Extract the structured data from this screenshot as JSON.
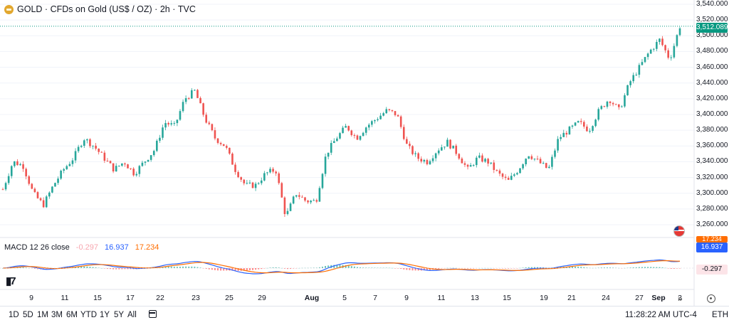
{
  "legend": {
    "symbol": "GOLD",
    "separator1": "·",
    "name": "CFDs on Gold (US$ / OZ)",
    "separator2": "·",
    "interval": "2h",
    "separator3": "·",
    "source": "TVC"
  },
  "macd": {
    "label": "MACD 12 26 close",
    "hist_value": "-0.297",
    "macd_value": "16.937",
    "signal_value": "17.234",
    "axis_tag_signal": "17.234",
    "axis_tag_macd": "16.937",
    "axis_tag_hist": "-0.297"
  },
  "price_axis": {
    "labels": [
      "3,540.000",
      "3,520.000",
      "3,500.000",
      "3,480.000",
      "3,460.000",
      "3,440.000",
      "3,420.000",
      "3,400.000",
      "3,380.000",
      "3,360.000",
      "3,340.000",
      "3,320.000",
      "3,300.000",
      "3,280.000",
      "3,260.000"
    ],
    "last_price": "3,512.089"
  },
  "time_axis": {
    "labels": [
      "9",
      "11",
      "15",
      "17",
      "22",
      "23",
      "25",
      "29",
      "Aug",
      "5",
      "7",
      "9",
      "11",
      "13",
      "15",
      "19",
      "21",
      "24",
      "27",
      "Sep",
      "3"
    ]
  },
  "toolbar": {
    "ranges": [
      "1D",
      "5D",
      "1M",
      "3M",
      "6M",
      "YTD",
      "1Y",
      "5Y",
      "All"
    ],
    "clock": "11:28:22 AM UTC-4",
    "session": "ETH"
  },
  "colors": {
    "up": "#26a69a",
    "down": "#ef5350",
    "macd_line": "#2962ff",
    "signal_line": "#ff6d00",
    "last_price": "#089981",
    "hist_up": "#26a69a",
    "hist_down": "#ff5252"
  },
  "icons": [
    "gold-logo-icon",
    "us-flag-icon",
    "tradingview-logo-icon",
    "calendar-icon",
    "settings-gear-icon",
    "scroll-right-icon"
  ],
  "chart_data": {
    "type": "candlestick",
    "symbol": "GOLD",
    "interval": "2h",
    "ylim": [
      3260,
      3540
    ],
    "x_labels": [
      "9",
      "11",
      "15",
      "17",
      "22",
      "23",
      "25",
      "29",
      "Aug",
      "5",
      "7",
      "9",
      "11",
      "13",
      "15",
      "19",
      "21",
      "24",
      "27",
      "Sep",
      "3"
    ],
    "close_trace": [
      [
        0,
        3305
      ],
      [
        2,
        3340
      ],
      [
        4,
        3335
      ],
      [
        6,
        3300
      ],
      [
        8,
        3285
      ],
      [
        10,
        3310
      ],
      [
        12,
        3330
      ],
      [
        14,
        3345
      ],
      [
        16,
        3370
      ],
      [
        18,
        3360
      ],
      [
        20,
        3345
      ],
      [
        22,
        3330
      ],
      [
        24,
        3340
      ],
      [
        26,
        3325
      ],
      [
        28,
        3340
      ],
      [
        30,
        3355
      ],
      [
        32,
        3390
      ],
      [
        34,
        3385
      ],
      [
        36,
        3420
      ],
      [
        38,
        3430
      ],
      [
        40,
        3395
      ],
      [
        42,
        3370
      ],
      [
        44,
        3360
      ],
      [
        46,
        3330
      ],
      [
        48,
        3310
      ],
      [
        50,
        3310
      ],
      [
        52,
        3325
      ],
      [
        54,
        3330
      ],
      [
        56,
        3270
      ],
      [
        58,
        3300
      ],
      [
        60,
        3290
      ],
      [
        62,
        3290
      ],
      [
        64,
        3350
      ],
      [
        66,
        3370
      ],
      [
        68,
        3385
      ],
      [
        70,
        3370
      ],
      [
        72,
        3385
      ],
      [
        74,
        3395
      ],
      [
        76,
        3405
      ],
      [
        78,
        3400
      ],
      [
        80,
        3360
      ],
      [
        82,
        3345
      ],
      [
        84,
        3340
      ],
      [
        86,
        3355
      ],
      [
        88,
        3365
      ],
      [
        90,
        3350
      ],
      [
        92,
        3330
      ],
      [
        94,
        3345
      ],
      [
        96,
        3340
      ],
      [
        98,
        3325
      ],
      [
        100,
        3315
      ],
      [
        102,
        3330
      ],
      [
        104,
        3350
      ],
      [
        106,
        3340
      ],
      [
        108,
        3330
      ],
      [
        110,
        3370
      ],
      [
        112,
        3380
      ],
      [
        114,
        3390
      ],
      [
        116,
        3380
      ],
      [
        118,
        3405
      ],
      [
        120,
        3420
      ],
      [
        122,
        3405
      ],
      [
        124,
        3440
      ],
      [
        126,
        3460
      ],
      [
        128,
        3480
      ],
      [
        130,
        3495
      ],
      [
        132,
        3470
      ],
      [
        134,
        3512
      ]
    ],
    "last_price": 3512.089,
    "macd": {
      "macd": 16.937,
      "signal": 17.234,
      "histogram": -0.297
    }
  }
}
